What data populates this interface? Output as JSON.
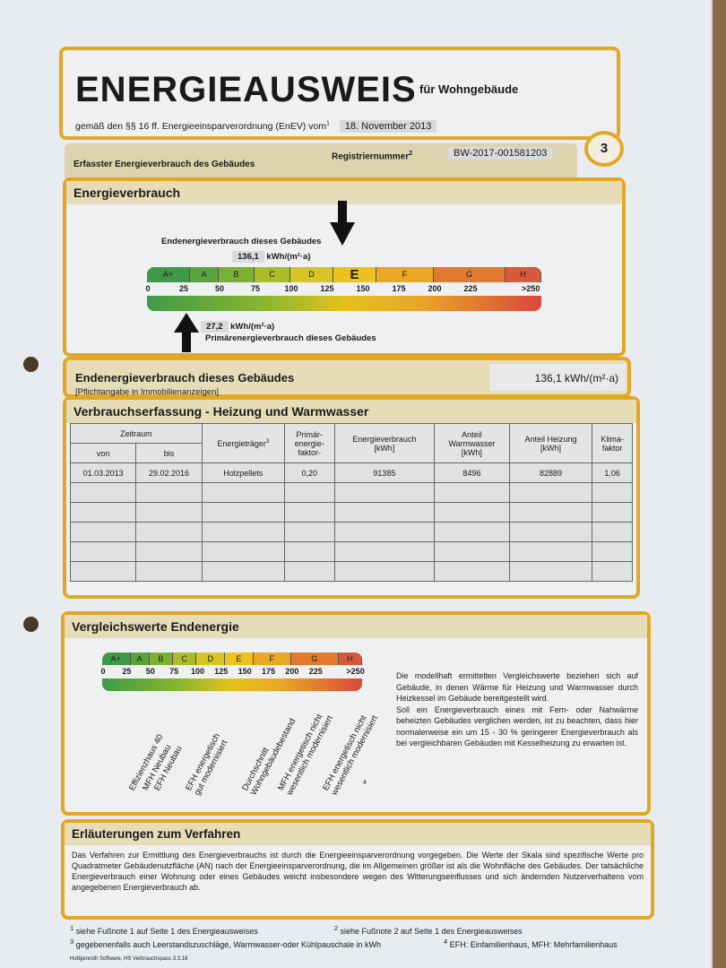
{
  "header": {
    "title": "ENERGIEAUSWEIS",
    "subtitle": "für Wohngebäude",
    "law": "gemäß den §§ 16 ff. Energieeinsparverordnung (EnEV) vom",
    "law_fn": "1",
    "date": "18. November 2013"
  },
  "regrow": {
    "label": "Erfasster Energieverbrauch des Gebäudes",
    "reg_label": "Registriernummer",
    "reg_fn": "2",
    "reg_value": "BW-2017-001581203",
    "page": "3"
  },
  "energy": {
    "title": "Energieverbrauch",
    "end_label": "Endenergieverbrauch dieses Gebäudes",
    "end_value": 136.1,
    "end_text": "136,1",
    "unit": "kWh/(m²·a)",
    "prim_label": "Primärenergieverbrauch dieses Gebäudes",
    "prim_value": 27.2,
    "prim_text": "27,2",
    "highlight_class": "E"
  },
  "scale": {
    "classes": [
      {
        "name": "A+",
        "from": 0,
        "to": 30,
        "color": "#3f9a48"
      },
      {
        "name": "A",
        "from": 30,
        "to": 50,
        "color": "#5aa43e"
      },
      {
        "name": "B",
        "from": 50,
        "to": 75,
        "color": "#7bb032"
      },
      {
        "name": "C",
        "from": 75,
        "to": 100,
        "color": "#a9bd2a"
      },
      {
        "name": "D",
        "from": 100,
        "to": 130,
        "color": "#d6c524"
      },
      {
        "name": "E",
        "from": 130,
        "to": 160,
        "color": "#ecc21e"
      },
      {
        "name": "F",
        "from": 160,
        "to": 200,
        "color": "#eaa625"
      },
      {
        "name": "G",
        "from": 200,
        "to": 250,
        "color": "#df7a30"
      },
      {
        "name": "H",
        "from": 250,
        "to": 275,
        "color": "#d85a3a"
      }
    ],
    "ticks": [
      "0",
      "25",
      "50",
      "75",
      "100",
      "125",
      "150",
      "175",
      "200",
      "225",
      ">250"
    ],
    "max": 275
  },
  "endline": {
    "label": "Endenergieverbrauch dieses Gebäudes",
    "note": "[Pflichtangabe in Immobilienanzeigen]",
    "value": "136,1 kWh/(m²·a)"
  },
  "consumption": {
    "title": "Verbrauchserfassung - Heizung und Warmwasser",
    "headers": {
      "zeitraum": "Zeitraum",
      "von": "von",
      "bis": "bis",
      "traeger": "Energieträger",
      "traeger_fn": "3",
      "pef": "Primär-\nenergie-\nfaktor-",
      "ev": "Energieverbrauch\n[kWh]",
      "ww": "Anteil\nWarmwasser\n[kWh]",
      "hz": "Anteil Heizung\n[kWh]",
      "kf": "Klima-\nfaktor"
    },
    "rows": [
      [
        "01.03.2013",
        "29.02.2016",
        "Holzpellets",
        "0,20",
        "91385",
        "8496",
        "82889",
        "1,06"
      ],
      [
        "",
        "",
        "",
        "",
        "",
        "",
        "",
        ""
      ],
      [
        "",
        "",
        "",
        "",
        "",
        "",
        "",
        ""
      ],
      [
        "",
        "",
        "",
        "",
        "",
        "",
        "",
        ""
      ],
      [
        "",
        "",
        "",
        "",
        "",
        "",
        "",
        ""
      ],
      [
        "",
        "",
        "",
        "",
        "",
        "",
        "",
        ""
      ]
    ]
  },
  "compare": {
    "title": "Vergleichswerte Endenergie",
    "fn": "4",
    "refs": [
      {
        "label": "Effizienzhaus 40",
        "value": 30
      },
      {
        "label": "MFH Neubau",
        "value": 45
      },
      {
        "label": "EFH Neubau",
        "value": 57
      },
      {
        "label": "EFH energetisch\ngut modernisiert",
        "value": 90
      },
      {
        "label": "Durchschnitt\nWohngebäudebestand",
        "value": 150
      },
      {
        "label": "MFH energetisch nicht\nwesentlich modernisiert",
        "value": 188
      },
      {
        "label": "EFH energetisch nicht\nwesentlich modernisiert",
        "value": 235
      }
    ],
    "text1": "Die modellhaft ermittelten Vergleichswerte beziehen sich auf Gebäude, in denen Wärme für Heizung und Warmwasser durch Heizkessel im Gebäude bereitgestellt wird.",
    "text2": "Soll ein Energieverbrauch eines mit Fern- oder Nahwärme beheizten Gebäudes verglichen werden, ist zu beachten, dass hier normalerweise ein um 15 - 30 % geringerer Energieverbrauch als bei vergleichbaren Gebäuden mit Kesselheizung zu erwarten ist."
  },
  "explain": {
    "title": "Erläuterungen zum Verfahren",
    "text": "Das Verfahren zur Ermittlung des Energieverbrauchs ist durch die Energieeinsparverordnung vorgegeben. Die Werte der Skala sind spezifische Werte pro Quadratmeter Gebäudenutzfläche (AN) nach der Energieeinsparverordnung, die im Allgemeinen größer ist als die Wohnfläche des Gebäudes. Der tatsächliche Energieverbrauch einer Wohnung oder eines Gebäudes weicht insbesondere wegen des Witterungseinflusses und sich ändernden Nutzerverhaltens vom angegebenen Energieverbrauch ab."
  },
  "footnotes": {
    "f1": "siehe Fußnote 1 auf Seite 1 des Energieausweises",
    "f2": "siehe Fußnote 2 auf Seite 1 des Energieausweises",
    "f3": "gegebenenfalls auch Leerstandszuschläge, Warmwasser-oder Kühlpauschale in kWh",
    "f4": "EFH: Einfamilienhaus, MFH: Mehrfamilienhaus",
    "n1": "1",
    "n2": "2",
    "n3": "3",
    "n4": "4",
    "software": "Hottgenroth Software, HS Verbrauchspass 3.3.18"
  }
}
